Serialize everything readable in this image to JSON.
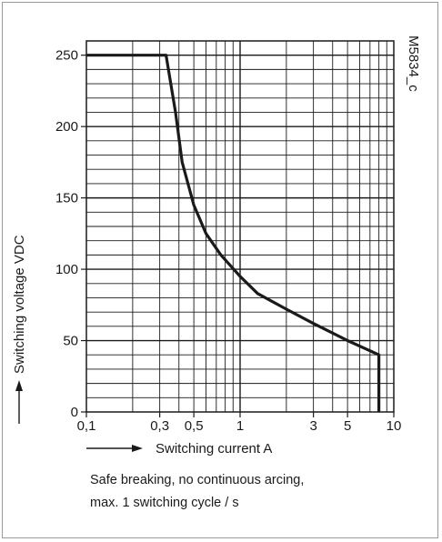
{
  "chart_data": {
    "type": "line",
    "title": "",
    "xlabel": "Switching current A",
    "ylabel": "Switching voltage VDC",
    "x_scale": "log",
    "xlim": [
      0.1,
      10
    ],
    "ylim": [
      0,
      260
    ],
    "x_ticks": [
      {
        "value": 0.1,
        "label": "0,1"
      },
      {
        "value": 0.3,
        "label": "0,3"
      },
      {
        "value": 0.5,
        "label": "0,5"
      },
      {
        "value": 1,
        "label": "1"
      },
      {
        "value": 3,
        "label": "3"
      },
      {
        "value": 5,
        "label": "5"
      },
      {
        "value": 10,
        "label": "10"
      }
    ],
    "y_ticks": [
      {
        "value": 0,
        "label": "0"
      },
      {
        "value": 50,
        "label": "50"
      },
      {
        "value": 100,
        "label": "100"
      },
      {
        "value": 150,
        "label": "150"
      },
      {
        "value": 200,
        "label": "200"
      },
      {
        "value": 250,
        "label": "250"
      }
    ],
    "grid": true,
    "series": [
      {
        "x": [
          0.1,
          0.33,
          0.38,
          0.42,
          0.5,
          0.6,
          0.75,
          1.0,
          1.3,
          2.0,
          3.0,
          5.0,
          8.0,
          8.0
        ],
        "y": [
          250,
          250,
          210,
          175,
          145,
          125,
          110,
          95,
          83,
          72,
          62,
          50,
          40,
          0
        ]
      }
    ],
    "annotation": "M5834_c",
    "line_color": "#1a1a1a"
  },
  "note": {
    "line1": "Safe breaking, no continuous arcing,",
    "line2": "max. 1 switching cycle / s"
  }
}
